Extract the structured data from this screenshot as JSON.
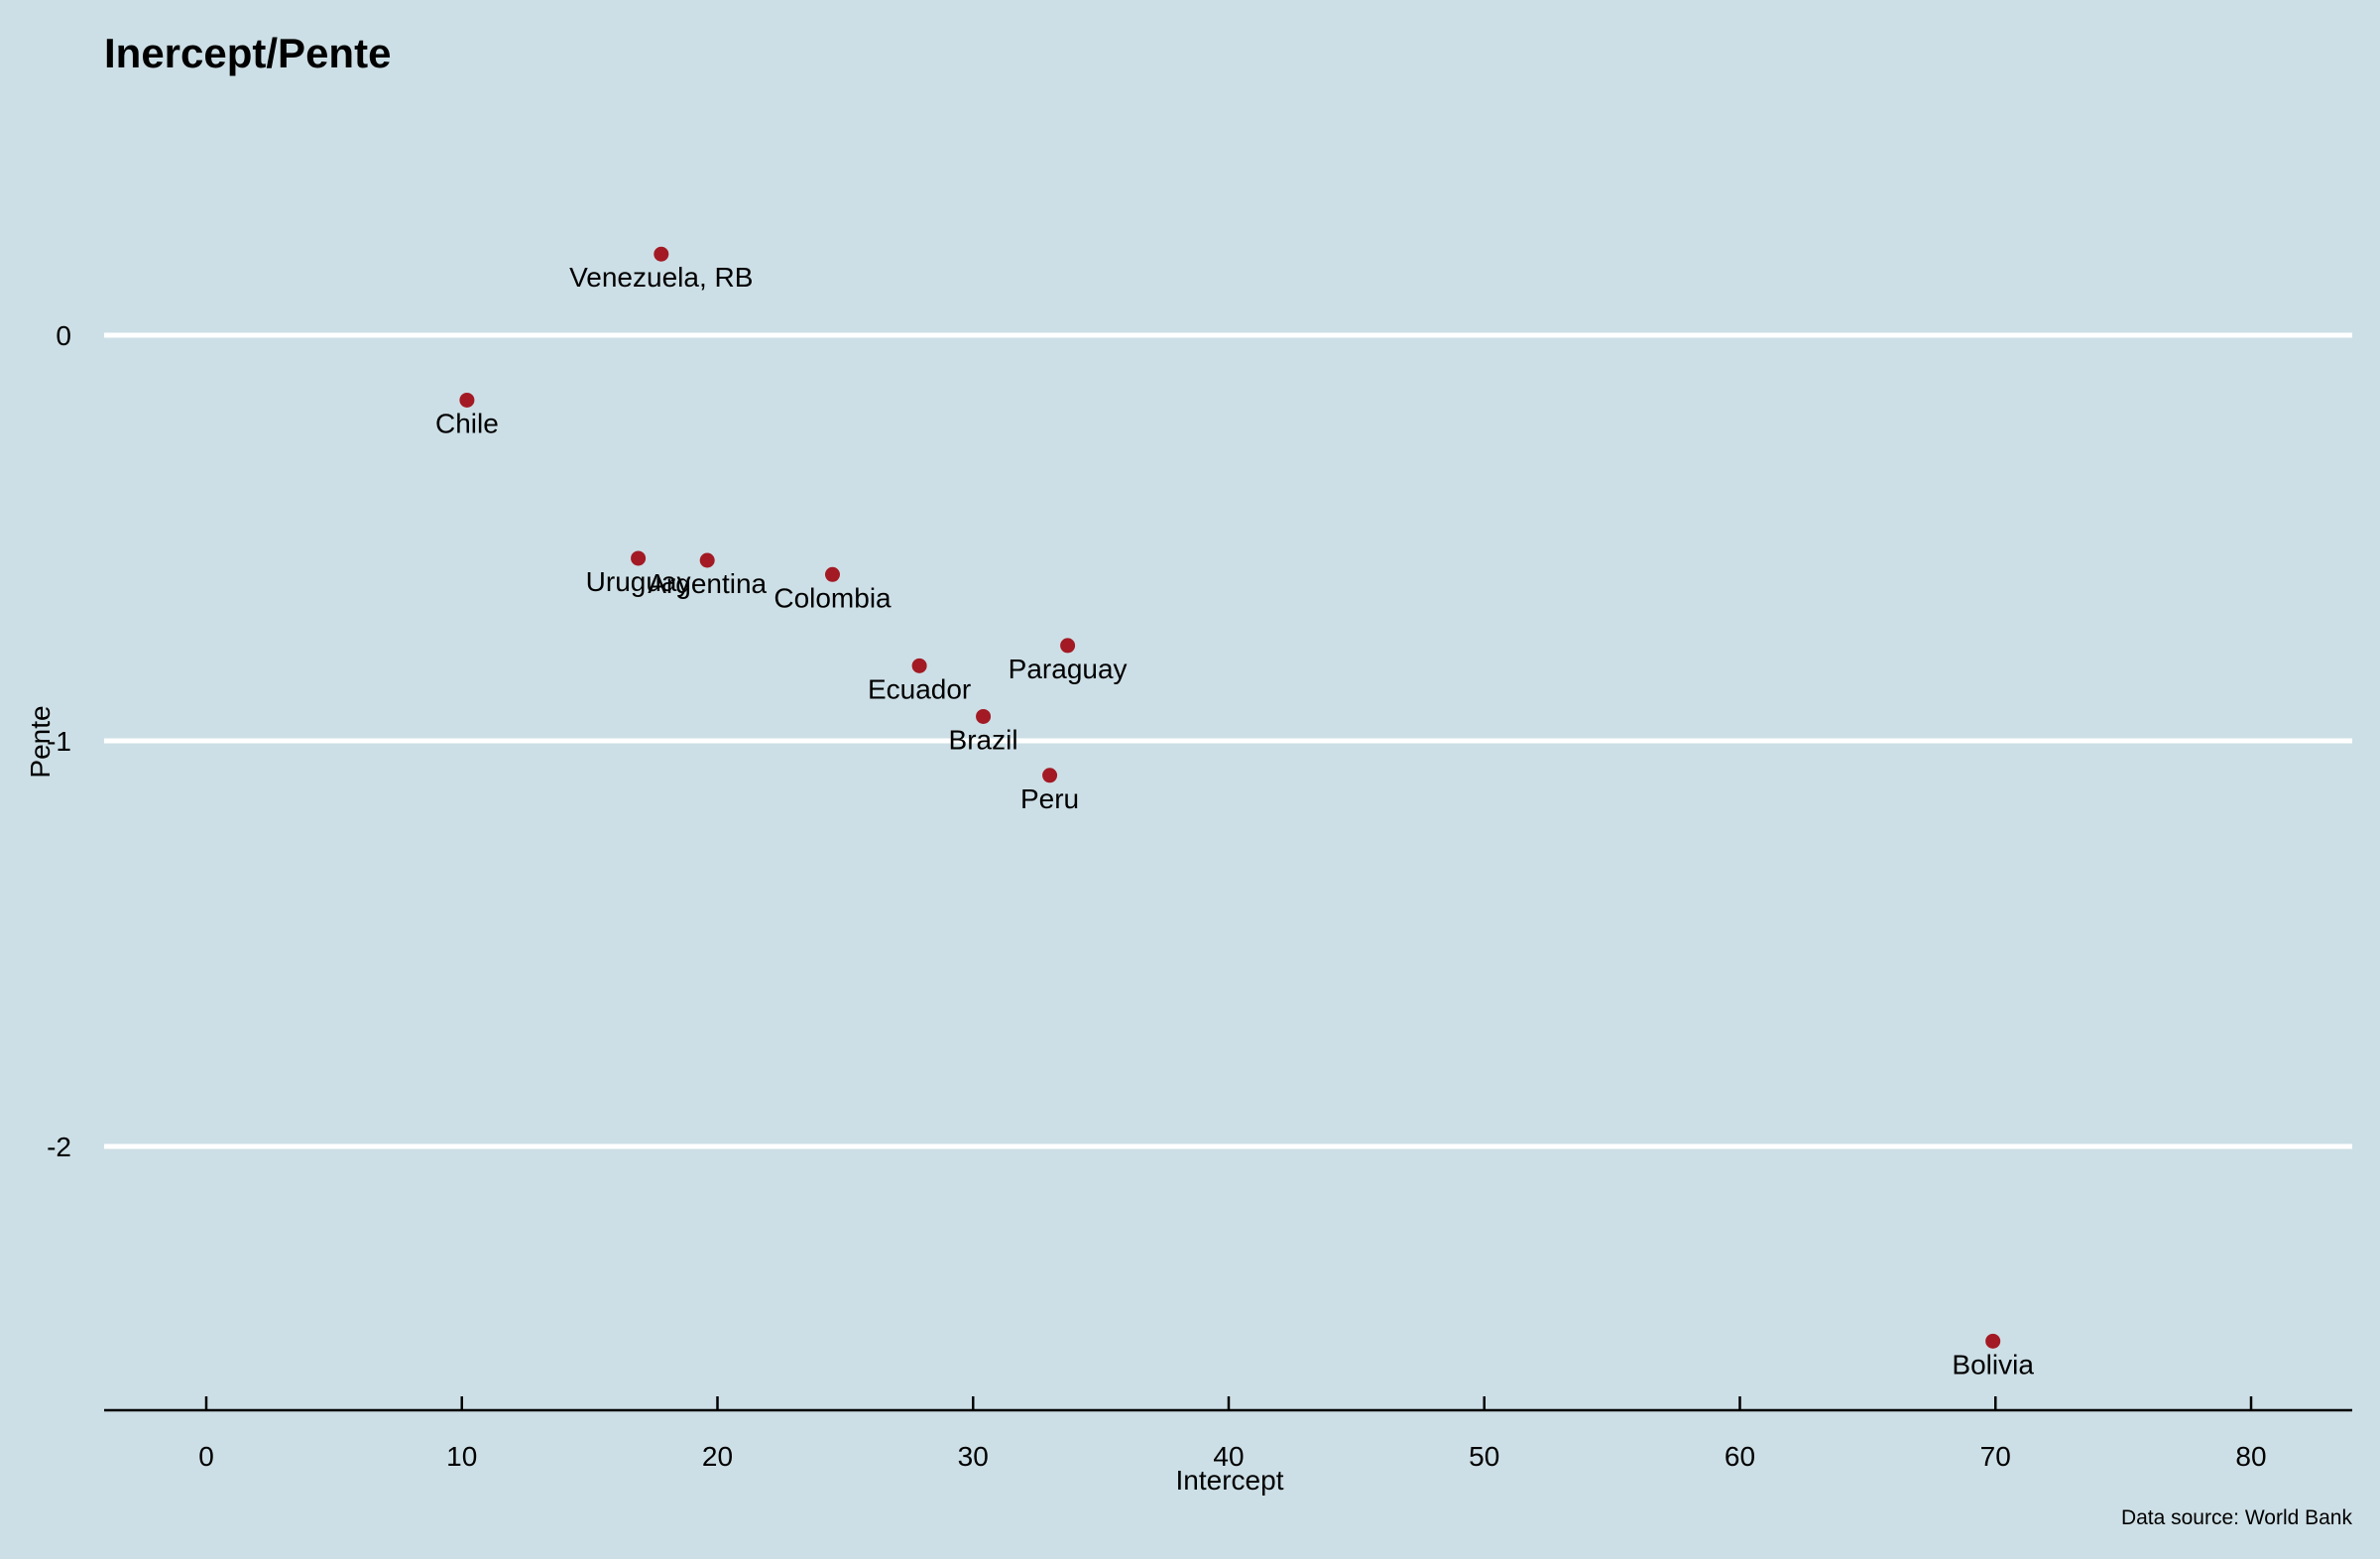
{
  "chart_data": {
    "type": "scatter",
    "title": "Inercept/Pente",
    "xlabel": "Intercept",
    "ylabel": "Pente",
    "caption": "Data source: World Bank",
    "xlim": [
      -4,
      84
    ],
    "ylim": [
      -2.65,
      0.6
    ],
    "x_ticks": [
      0,
      10,
      20,
      30,
      40,
      50,
      60,
      70,
      80
    ],
    "y_ticks": [
      0,
      -1,
      -2
    ],
    "grid": "horizontal",
    "point_color": "#a31a24",
    "gridline_color": "#ffffff",
    "background_color": "#cddfe6",
    "points": [
      {
        "label": "Venezuela, RB",
        "x": 17.8,
        "y": 0.2
      },
      {
        "label": "Chile",
        "x": 10.2,
        "y": -0.16
      },
      {
        "label": "Uruguay",
        "x": 16.9,
        "y": -0.55
      },
      {
        "label": "Argentina",
        "x": 19.6,
        "y": -0.555
      },
      {
        "label": "Colombia",
        "x": 24.5,
        "y": -0.59
      },
      {
        "label": "Ecuador",
        "x": 27.9,
        "y": -0.815
      },
      {
        "label": "Paraguay",
        "x": 33.7,
        "y": -0.765
      },
      {
        "label": "Brazil",
        "x": 30.4,
        "y": -0.94
      },
      {
        "label": "Peru",
        "x": 33.0,
        "y": -1.085
      },
      {
        "label": "Bolivia",
        "x": 69.9,
        "y": -2.48
      }
    ]
  }
}
